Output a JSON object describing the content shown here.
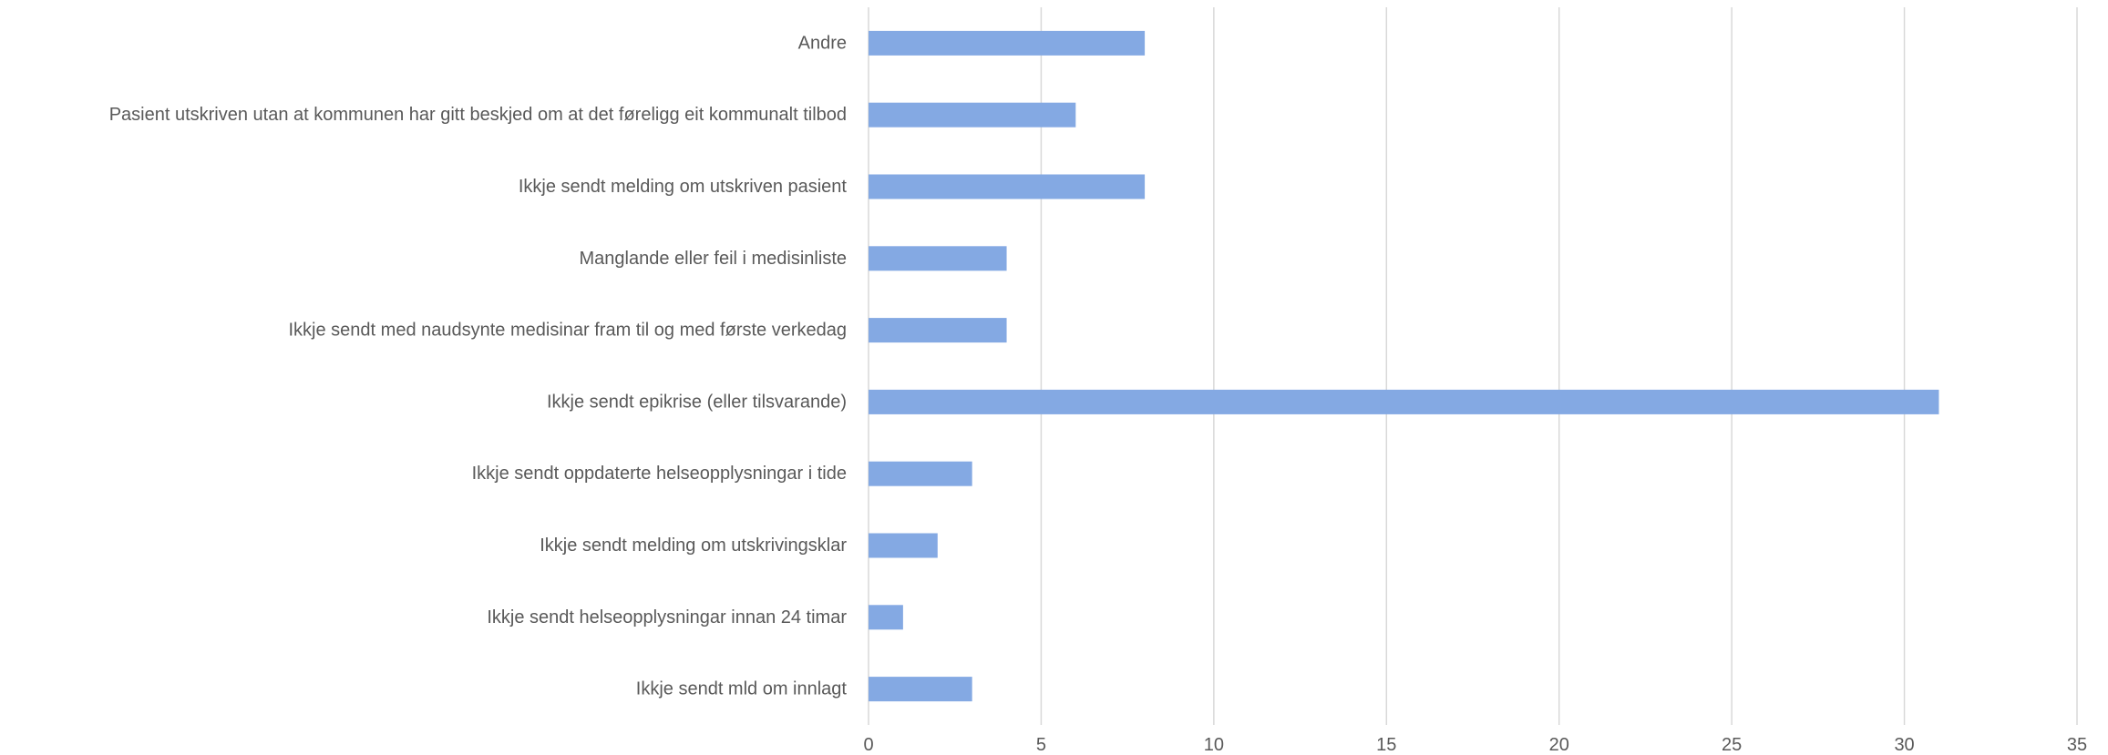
{
  "chart_data": {
    "type": "bar",
    "orientation": "horizontal",
    "categories": [
      "Andre",
      "Pasient utskriven utan at kommunen har gitt beskjed om at det føreligg eit kommunalt tilbod",
      "Ikkje sendt melding om utskriven pasient",
      "Manglande eller feil i medisinliste",
      "Ikkje sendt med naudsynte medisinar fram til og med første verkedag",
      "Ikkje sendt epikrise (eller tilsvarande)",
      "Ikkje sendt oppdaterte helseopplysningar i tide",
      "Ikkje sendt melding om utskrivingsklar",
      "Ikkje sendt helseopplysningar innan 24 timar",
      "Ikkje sendt mld om innlagt"
    ],
    "values": [
      8,
      6,
      8,
      4,
      4,
      31,
      3,
      2,
      1,
      3
    ],
    "xlim": [
      0,
      35
    ],
    "xticks": [
      "0",
      "5",
      "10",
      "15",
      "20",
      "25",
      "30",
      "35"
    ],
    "title": "",
    "xlabel": "",
    "ylabel": "",
    "grid": "vertical",
    "legend": "none",
    "bar_color": "#84a9e3"
  }
}
